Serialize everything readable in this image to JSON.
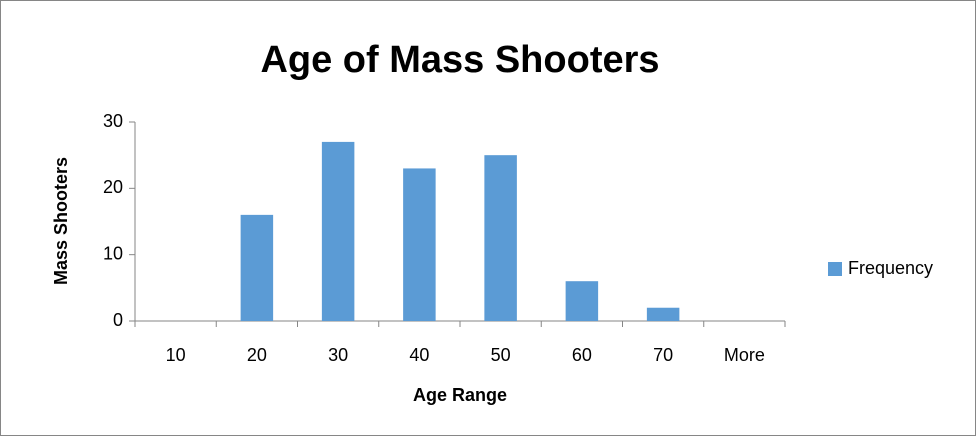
{
  "chart_data": {
    "type": "bar",
    "title": "Age of Mass Shooters",
    "x_label": "Age Range",
    "y_label": "Mass Shooters",
    "categories": [
      "10",
      "20",
      "30",
      "40",
      "50",
      "60",
      "70",
      "More"
    ],
    "series": [
      {
        "name": "Frequency",
        "color": "#5b9bd5",
        "values": [
          0,
          16,
          27,
          23,
          25,
          6,
          2,
          0
        ]
      }
    ],
    "ylim": [
      0,
      30
    ],
    "yticks": [
      0,
      10,
      20,
      30
    ],
    "grid": false,
    "legend": "right"
  }
}
